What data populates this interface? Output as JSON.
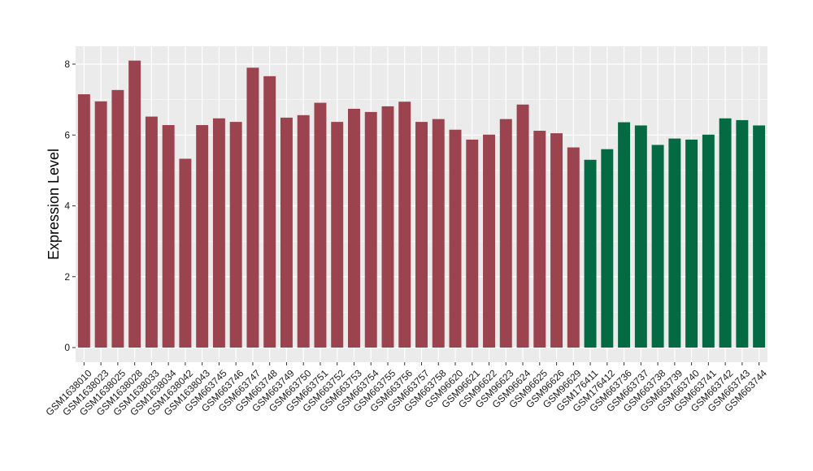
{
  "chart_data": {
    "type": "bar",
    "title": "",
    "xlabel": "",
    "ylabel": "Expression Level",
    "ylim": [
      0,
      8.2
    ],
    "yticks": [
      0,
      2,
      4,
      6,
      8
    ],
    "grid": true,
    "legend": "none",
    "colors": {
      "group1": "#9C4350",
      "group2": "#036A44",
      "panel": "#EBEBEB",
      "gridline": "#FFFFFF",
      "tick": "#333333"
    },
    "categories": [
      "GSM1638010",
      "GSM1638023",
      "GSM1638025",
      "GSM1638028",
      "GSM1638033",
      "GSM1638034",
      "GSM1638042",
      "GSM1638043",
      "GSM663745",
      "GSM663746",
      "GSM663747",
      "GSM663748",
      "GSM663749",
      "GSM663750",
      "GSM663751",
      "GSM663752",
      "GSM663753",
      "GSM663754",
      "GSM663755",
      "GSM663756",
      "GSM663757",
      "GSM663758",
      "GSM96620",
      "GSM96621",
      "GSM96622",
      "GSM96623",
      "GSM96624",
      "GSM96625",
      "GSM96626",
      "GSM96629",
      "GSM176411",
      "GSM176412",
      "GSM663736",
      "GSM663737",
      "GSM663738",
      "GSM663739",
      "GSM663740",
      "GSM663741",
      "GSM663742",
      "GSM663743",
      "GSM663744"
    ],
    "values": [
      7.15,
      6.95,
      7.27,
      8.1,
      6.52,
      6.28,
      5.33,
      6.28,
      6.47,
      6.37,
      7.9,
      7.66,
      6.49,
      6.56,
      6.91,
      6.37,
      6.74,
      6.65,
      6.81,
      6.94,
      6.37,
      6.45,
      6.15,
      5.87,
      6.01,
      6.45,
      6.86,
      6.12,
      6.05,
      5.65,
      5.3,
      5.6,
      6.36,
      6.27,
      5.72,
      5.9,
      5.87,
      6.01,
      6.47,
      6.42,
      6.27
    ],
    "groups": [
      1,
      1,
      1,
      1,
      1,
      1,
      1,
      1,
      1,
      1,
      1,
      1,
      1,
      1,
      1,
      1,
      1,
      1,
      1,
      1,
      1,
      1,
      1,
      1,
      1,
      1,
      1,
      1,
      1,
      1,
      2,
      2,
      2,
      2,
      2,
      2,
      2,
      2,
      2,
      2,
      2
    ]
  }
}
